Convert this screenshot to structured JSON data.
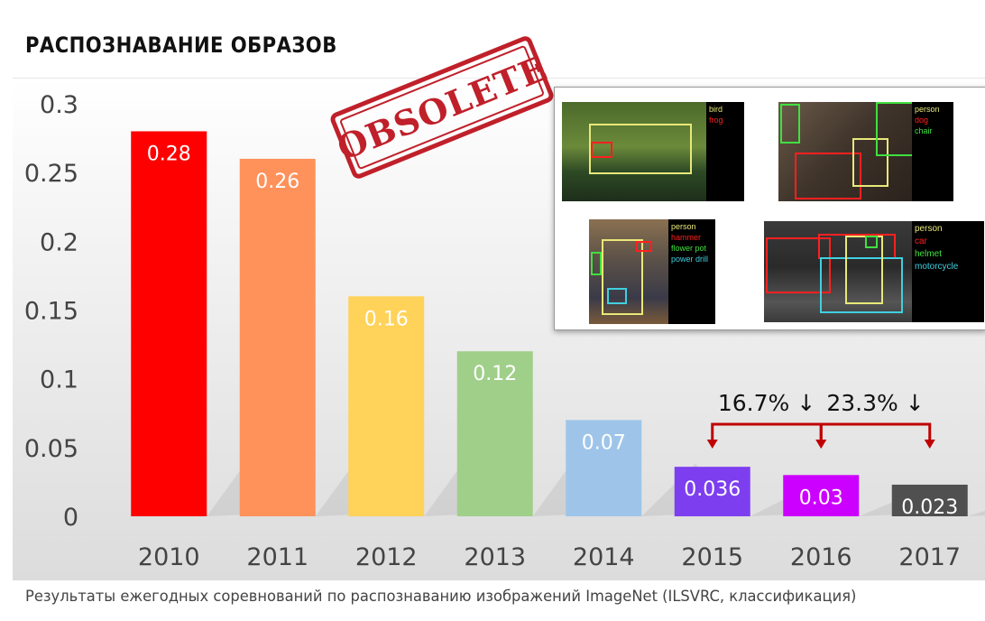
{
  "title": "РАСПОЗНАВАНИЕ ОБРАЗОВ",
  "caption": "Результаты ежегодных соревнований по распознаванию изображений ImageNet (ILSVRC, классификация)",
  "stamp": "OBSOLETE",
  "chart_data": {
    "type": "bar",
    "categories": [
      "2010",
      "2011",
      "2012",
      "2013",
      "2014",
      "2015",
      "2016",
      "2017"
    ],
    "values": [
      0.28,
      0.26,
      0.16,
      0.12,
      0.07,
      0.036,
      0.03,
      0.023
    ],
    "value_labels": [
      "0.28",
      "0.26",
      "0.16",
      "0.12",
      "0.07",
      "0.036",
      "0.03",
      "0.023"
    ],
    "colors": [
      "#ff0000",
      "#ff915a",
      "#ffd25a",
      "#a0cf8a",
      "#9ec5e9",
      "#7d3ef0",
      "#cc00ff",
      "#505050"
    ],
    "y_ticks": [
      0,
      0.05,
      0.1,
      0.15,
      0.2,
      0.25,
      0.3
    ],
    "y_tick_labels": [
      "0",
      "0.05",
      "0.1",
      "0.15",
      "0.2",
      "0.25",
      "0.3"
    ],
    "ylim": [
      0,
      0.3
    ],
    "grid": false,
    "annotations": [
      {
        "text": "16.7% ↓",
        "from": "2015",
        "to": "2016",
        "color": "#c00000"
      },
      {
        "text": "23.3% ↓",
        "from": "2016",
        "to": "2017",
        "color": "#c00000"
      }
    ]
  },
  "inset": {
    "panels": [
      {
        "labels": [
          {
            "text": "bird",
            "color": "#e8e87a"
          },
          {
            "text": "frog",
            "color": "#ff2020"
          }
        ]
      },
      {
        "labels": [
          {
            "text": "person",
            "color": "#e8e87a"
          },
          {
            "text": "dog",
            "color": "#ff2020"
          },
          {
            "text": "chair",
            "color": "#40e040"
          }
        ]
      },
      {
        "labels": [
          {
            "text": "person",
            "color": "#e8e87a"
          },
          {
            "text": "hammer",
            "color": "#ff2020"
          },
          {
            "text": "flower pot",
            "color": "#40e040"
          },
          {
            "text": "power drill",
            "color": "#40d0e0"
          }
        ]
      },
      {
        "labels": [
          {
            "text": "person",
            "color": "#e8e87a"
          },
          {
            "text": "car",
            "color": "#ff2020"
          },
          {
            "text": "helmet",
            "color": "#40e040"
          },
          {
            "text": "motorcycle",
            "color": "#40d0e0"
          }
        ]
      }
    ]
  }
}
